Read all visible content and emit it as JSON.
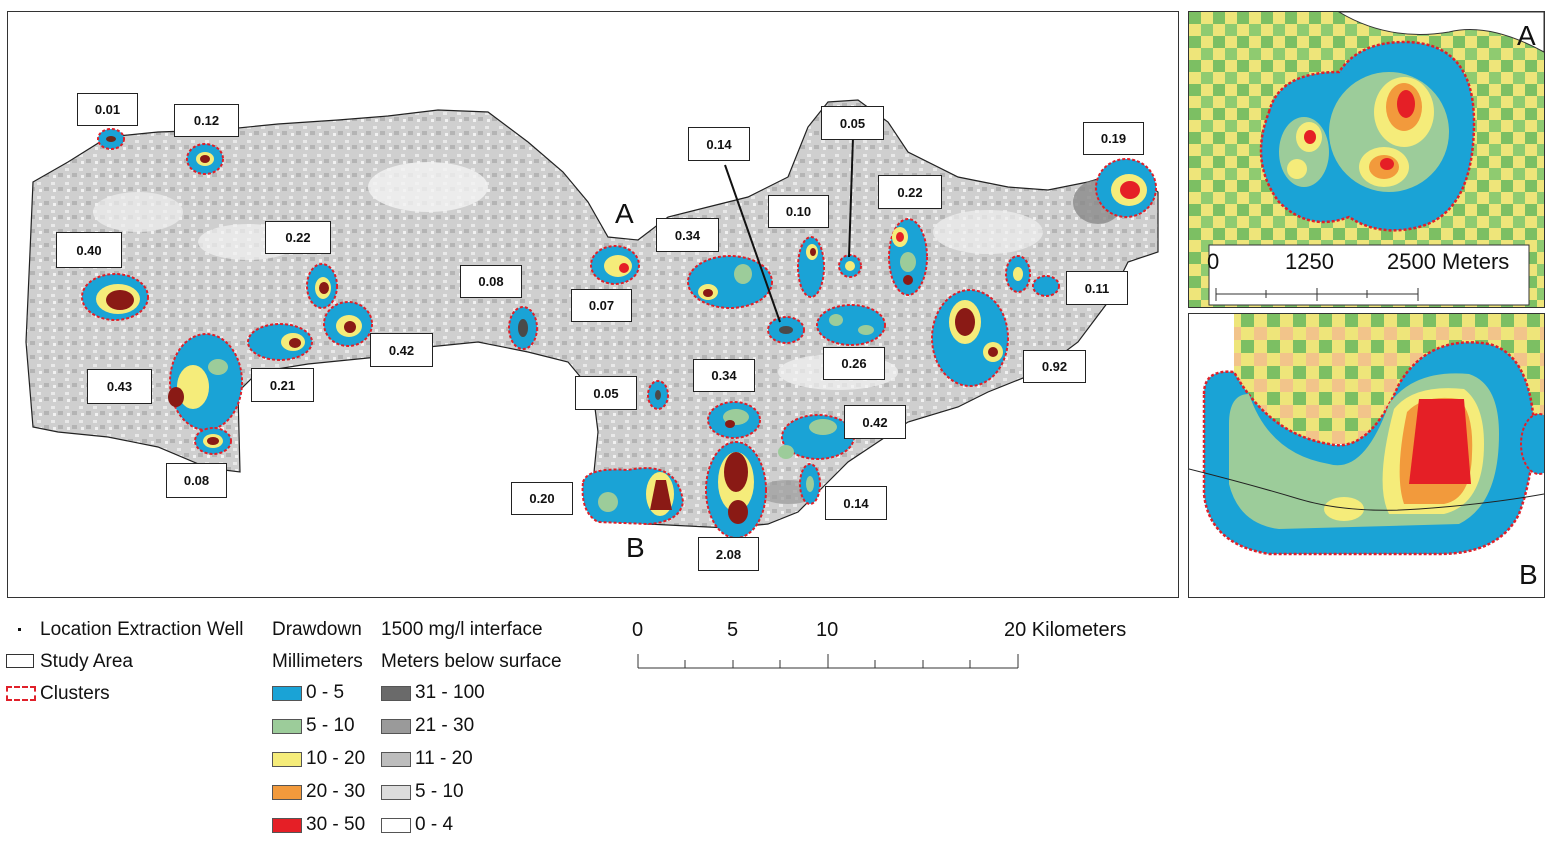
{
  "map": {
    "cluster_labels": [
      {
        "id": "c1",
        "value": "0.01"
      },
      {
        "id": "c2",
        "value": "0.12"
      },
      {
        "id": "c3",
        "value": "0.40"
      },
      {
        "id": "c4",
        "value": "0.22"
      },
      {
        "id": "c5",
        "value": "0.43"
      },
      {
        "id": "c6",
        "value": "0.21"
      },
      {
        "id": "c7",
        "value": "0.42"
      },
      {
        "id": "c8",
        "value": "0.08"
      },
      {
        "id": "c9",
        "value": "0.08"
      },
      {
        "id": "c10",
        "value": "0.07"
      },
      {
        "id": "c11",
        "value": "0.34"
      },
      {
        "id": "c12",
        "value": "0.14"
      },
      {
        "id": "c13",
        "value": "0.10"
      },
      {
        "id": "c14",
        "value": "0.05"
      },
      {
        "id": "c15",
        "value": "0.22"
      },
      {
        "id": "c16",
        "value": "0.19"
      },
      {
        "id": "c17",
        "value": "0.11"
      },
      {
        "id": "c18",
        "value": "0.26"
      },
      {
        "id": "c19",
        "value": "0.92"
      },
      {
        "id": "c20",
        "value": "0.05"
      },
      {
        "id": "c21",
        "value": "0.34"
      },
      {
        "id": "c22",
        "value": "0.42"
      },
      {
        "id": "c23",
        "value": "0.20"
      },
      {
        "id": "c24",
        "value": "2.08"
      },
      {
        "id": "c25",
        "value": "0.14"
      }
    ],
    "marker_a": "A",
    "marker_b": "B"
  },
  "inset_a": {
    "letter": "A",
    "scale_labels": [
      "0",
      "1250",
      "2500 Meters"
    ]
  },
  "inset_b": {
    "letter": "B"
  },
  "legend": {
    "well_label": "Location Extraction Well",
    "study_area_label": "Study Area",
    "clusters_label": "Clusters",
    "drawdown_title": "Drawdown",
    "drawdown_unit": "Millimeters",
    "interface_title": "1500 mg/l interface",
    "interface_unit": "Meters below surface",
    "drawdown_classes": [
      {
        "label": "0 - 5",
        "color": "#1aa3d6"
      },
      {
        "label": "5 - 10",
        "color": "#9ccc9a"
      },
      {
        "label": "10 - 20",
        "color": "#f5ec7a"
      },
      {
        "label": "20 - 30",
        "color": "#f29a3c"
      },
      {
        "label": "30 - 50",
        "color": "#e51f26"
      }
    ],
    "interface_classes": [
      {
        "label": "31 - 100",
        "color": "#6a6a6a"
      },
      {
        "label": "21 - 30",
        "color": "#9a9a9a"
      },
      {
        "label": "11 - 20",
        "color": "#bdbdbd"
      },
      {
        "label": "5 - 10",
        "color": "#dcdcdc"
      },
      {
        "label": "0 - 4",
        "color": "#ffffff"
      }
    ]
  },
  "scale_bar": {
    "labels": [
      "0",
      "5",
      "10",
      "20 Kilometers"
    ]
  },
  "colors": {
    "cluster_outline": "#e0202a",
    "land_base": "#d6d6d6",
    "inset_green": "#7cbf63",
    "inset_yellow": "#eee57a"
  }
}
